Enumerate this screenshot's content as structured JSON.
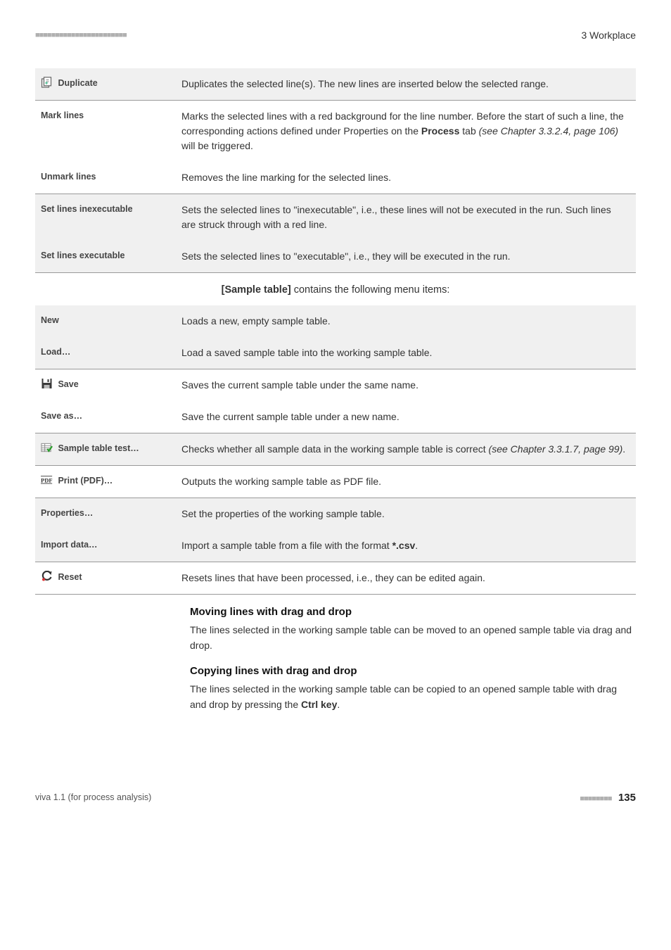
{
  "header": {
    "dots": "■■■■■■■■■■■■■■■■■■■■■■■",
    "chapter": "3 Workplace"
  },
  "table1": {
    "rows": [
      {
        "label": "Duplicate",
        "icon": "duplicate",
        "desc": "Duplicates the selected line(s). The new lines are inserted below the selected range.",
        "band": "alt"
      },
      {
        "label": "Mark lines",
        "desc_html": "Marks the selected lines with a red background for the line number. Before the start of such a line, the corresponding actions defined under Properties on the <b>Process</b> tab <i>(see Chapter 3.3.2.4, page 106)</i> will be triggered.",
        "band": "plain"
      },
      {
        "label": "Unmark lines",
        "desc": "Removes the line marking for the selected lines.",
        "band": "plain"
      },
      {
        "label": "Set lines inexecuta­ble",
        "desc": "Sets the selected lines to \"inexecutable\", i.e., these lines will not be executed in the run. Such lines are struck through with a red line.",
        "band": "alt"
      },
      {
        "label": "Set lines executable",
        "desc": "Sets the selected lines to \"executable\", i.e., they will be executed in the run.",
        "band": "alt"
      }
    ]
  },
  "midcaption_html": "<b>[Sample table]</b> contains the following menu items:",
  "table2": {
    "rows": [
      {
        "label": "New",
        "desc": "Loads a new, empty sample table.",
        "band": "alt"
      },
      {
        "label": "Load…",
        "desc": "Load a saved sample table into the working sample table.",
        "band": "alt"
      },
      {
        "label": "Save",
        "icon": "save",
        "desc": "Saves the current sample table under the same name.",
        "band": "plain"
      },
      {
        "label": "Save as…",
        "desc": "Save the current sample table under a new name.",
        "band": "plain"
      },
      {
        "label": "Sample table test…",
        "icon": "test",
        "desc_html": "Checks whether all sample data in the working sample table is correct <i>(see Chapter 3.3.1.7, page 99)</i>.",
        "band": "alt"
      },
      {
        "label": "Print (PDF)…",
        "icon": "pdf",
        "desc": "Outputs the working sample table as PDF file.",
        "band": "plain"
      },
      {
        "label": "Properties…",
        "desc": "Set the properties of the working sample table.",
        "band": "alt"
      },
      {
        "label": "Import data…",
        "desc_html": "Import a sample table from a file with the format <b>*.csv</b>.",
        "band": "alt"
      },
      {
        "label": "Reset",
        "icon": "reset",
        "desc": "Resets lines that have been processed, i.e., they can be edited again.",
        "band": "plain"
      }
    ]
  },
  "sections": [
    {
      "h": "Moving lines with drag and drop",
      "p": "The lines selected in the working sample table can be moved to an opened sample table via drag and drop."
    },
    {
      "h": "Copying lines with drag and drop",
      "p_html": "The lines selected in the working sample table can be copied to an opened sample table with drag and drop by pressing the <b>Ctrl key</b>."
    }
  ],
  "footer": {
    "left": "viva 1.1 (for process analysis)",
    "dots": "■■■■■■■■",
    "page": "135"
  },
  "icons": {
    "duplicate": "duplicate-icon",
    "save": "save-icon",
    "test": "test-icon",
    "pdf": "pdf-icon",
    "reset": "reset-icon"
  }
}
